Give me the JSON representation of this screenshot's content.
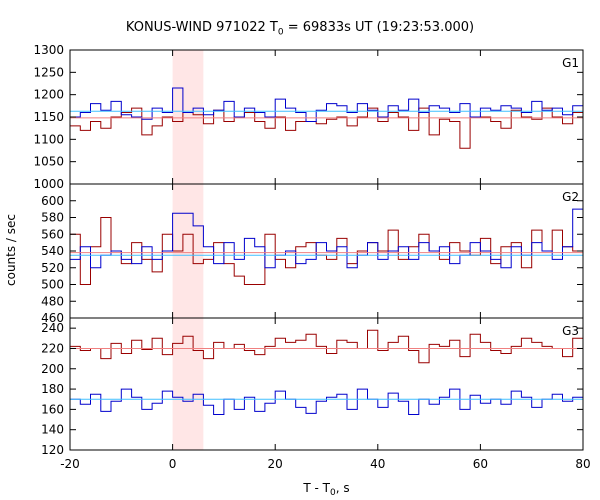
{
  "title": {
    "prefix": "KONUS-WIND 971022 T",
    "sub": "0",
    "suffix": " = 69833s UT (19:23:53.000)"
  },
  "chart_data": {
    "type": "line",
    "xlabel": "T - T0, s",
    "xlabel_parts": [
      "T - T",
      "0",
      ", s"
    ],
    "ylabel": "counts / sec",
    "xlim": [
      -20,
      80
    ],
    "xticks": [
      -20,
      0,
      20,
      40,
      60,
      80
    ],
    "highlight_interval": [
      0,
      6
    ],
    "colors": {
      "red_series": "#990000",
      "blue_series": "#0000cc",
      "red_mean": "#f08080",
      "blue_mean": "#40c0ff",
      "highlight": "#ffe6e6"
    },
    "panels": [
      {
        "name": "G1",
        "ylim": [
          1000,
          1300
        ],
        "yticks": [
          1000,
          1050,
          1100,
          1150,
          1200,
          1250,
          1300
        ],
        "bin_width": 2,
        "x_start": -20,
        "series": [
          {
            "color": "red",
            "values": [
              1130,
              1120,
              1140,
              1125,
              1150,
              1160,
              1170,
              1110,
              1130,
              1150,
              1140,
              1160,
              1155,
              1135,
              1165,
              1140,
              1150,
              1160,
              1140,
              1125,
              1150,
              1120,
              1140,
              1140,
              1135,
              1145,
              1150,
              1130,
              1150,
              1170,
              1140,
              1160,
              1150,
              1120,
              1170,
              1110,
              1145,
              1140,
              1080,
              1150,
              1150,
              1140,
              1125,
              1165,
              1150,
              1145,
              1170,
              1150,
              1135,
              1160
            ]
          },
          {
            "color": "blue",
            "values": [
              1150,
              1160,
              1180,
              1165,
              1185,
              1155,
              1150,
              1145,
              1170,
              1160,
              1215,
              1160,
              1170,
              1155,
              1165,
              1185,
              1150,
              1170,
              1160,
              1150,
              1190,
              1170,
              1160,
              1140,
              1165,
              1180,
              1175,
              1160,
              1180,
              1165,
              1150,
              1175,
              1165,
              1190,
              1160,
              1175,
              1170,
              1160,
              1180,
              1150,
              1170,
              1165,
              1175,
              1170,
              1160,
              1185,
              1165,
              1170,
              1155,
              1175
            ]
          }
        ],
        "mean_red": 1148,
        "mean_blue": 1163
      },
      {
        "name": "G2",
        "ylim": [
          460,
          620
        ],
        "yticks": [
          460,
          480,
          500,
          520,
          540,
          560,
          580,
          600
        ],
        "bin_width": 2,
        "x_start": -20,
        "series": [
          {
            "color": "red",
            "values": [
              560,
              500,
              545,
              580,
              540,
              525,
              550,
              530,
              515,
              560,
              540,
              560,
              525,
              530,
              550,
              525,
              510,
              500,
              500,
              560,
              530,
              520,
              545,
              550,
              535,
              530,
              555,
              525,
              540,
              550,
              540,
              565,
              530,
              545,
              560,
              540,
              530,
              550,
              540,
              535,
              555,
              525,
              545,
              550,
              520,
              565,
              540,
              565,
              545,
              540
            ]
          },
          {
            "color": "blue",
            "values": [
              530,
              545,
              520,
              535,
              540,
              530,
              525,
              545,
              530,
              540,
              585,
              585,
              570,
              545,
              525,
              550,
              530,
              555,
              545,
              520,
              535,
              540,
              525,
              530,
              550,
              540,
              545,
              520,
              535,
              550,
              530,
              540,
              545,
              530,
              550,
              540,
              545,
              525,
              535,
              550,
              540,
              530,
              520,
              545,
              535,
              550,
              540,
              530,
              545,
              590
            ]
          }
        ],
        "mean_red": 538,
        "mean_blue": 535
      },
      {
        "name": "G3",
        "ylim": [
          120,
          250
        ],
        "yticks": [
          120,
          140,
          160,
          180,
          200,
          220,
          240
        ],
        "bin_width": 2,
        "x_start": -20,
        "series": [
          {
            "color": "red",
            "values": [
              222,
              218,
              220,
              210,
              225,
              215,
              228,
              219,
              230,
              214,
              225,
              232,
              218,
              210,
              226,
              220,
              224,
              218,
              214,
              222,
              230,
              226,
              228,
              234,
              222,
              215,
              228,
              226,
              220,
              238,
              218,
              226,
              232,
              218,
              206,
              224,
              222,
              228,
              212,
              234,
              226,
              218,
              215,
              222,
              230,
              226,
              222,
              220,
              212,
              230
            ]
          },
          {
            "color": "blue",
            "values": [
              170,
              165,
              175,
              158,
              168,
              180,
              172,
              160,
              166,
              178,
              172,
              168,
              175,
              164,
              155,
              170,
              160,
              172,
              158,
              166,
              178,
              170,
              162,
              156,
              168,
              172,
              175,
              160,
              180,
              170,
              162,
              176,
              168,
              155,
              170,
              165,
              172,
              180,
              160,
              174,
              166,
              170,
              165,
              178,
              172,
              162,
              170,
              175,
              168,
              172
            ]
          }
        ],
        "mean_red": 220,
        "mean_blue": 170
      }
    ]
  }
}
